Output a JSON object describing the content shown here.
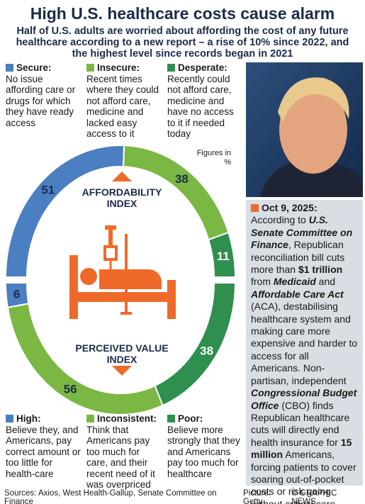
{
  "title": "High U.S. healthcare costs cause alarm",
  "subtitle": "Half of U.S. adults are worried about affording the cost of any future healthcare according to a new report – a rise of 10% since 2022, and the highest level since records began in 2021",
  "note": "Figures in %",
  "chart_data": [
    {
      "type": "pie",
      "title": "AFFORDABILITY INDEX",
      "categories": [
        "Secure:",
        "Insecure:",
        "Desperate:"
      ],
      "descriptions": [
        "No issue affording care or drugs for which they have ready access",
        "Recent times where they could not afford care, medicine and lacked easy access to it",
        "Recently could not afford care, medicine and have no access to it if needed today"
      ],
      "values": [
        51,
        38,
        11
      ],
      "colors": [
        "#4a7fc1",
        "#7bb843",
        "#2f8f4e"
      ]
    },
    {
      "type": "pie",
      "title": "PERCEIVED VALUE INDEX",
      "categories": [
        "High:",
        "Inconsistent:",
        "Poor:"
      ],
      "descriptions": [
        "Believe they, and Americans, pay correct amount or too little for health-care",
        "Think that Americans pay too much for care, and their recent need of it was overpriced",
        "Believe more strongly that they and Americans pay too much for healthcare"
      ],
      "values": [
        6,
        56,
        38
      ],
      "colors": [
        "#4a7fc1",
        "#7bb843",
        "#2f8f4e"
      ]
    }
  ],
  "panel": {
    "date": "Oct 9, 2025:",
    "runs": [
      "According to ",
      "U.S. Senate Committee on Finance",
      ", Republican reconciliation bill cuts more than ",
      "$1 trillion",
      " from ",
      "Medicaid",
      " and ",
      "Affordable Care Act",
      " (ACA), destabilising healthcare system and making care more expensive and harder to access for all Americans. Non-partisan, independent ",
      "Congressional Budget Office",
      " (CBO) finds Republican healthcare cuts will directly end health insurance for ",
      "15 million",
      " Americans, forcing patients to cover soaring out-of-pocket costs or risk going without critical care"
    ]
  },
  "footer": {
    "sources": "Sources: Axios, West Health-Gallup, Senate Committee on Finance",
    "picture": "Picture: Getty",
    "credit": "© GRAPHIC NEWS"
  }
}
